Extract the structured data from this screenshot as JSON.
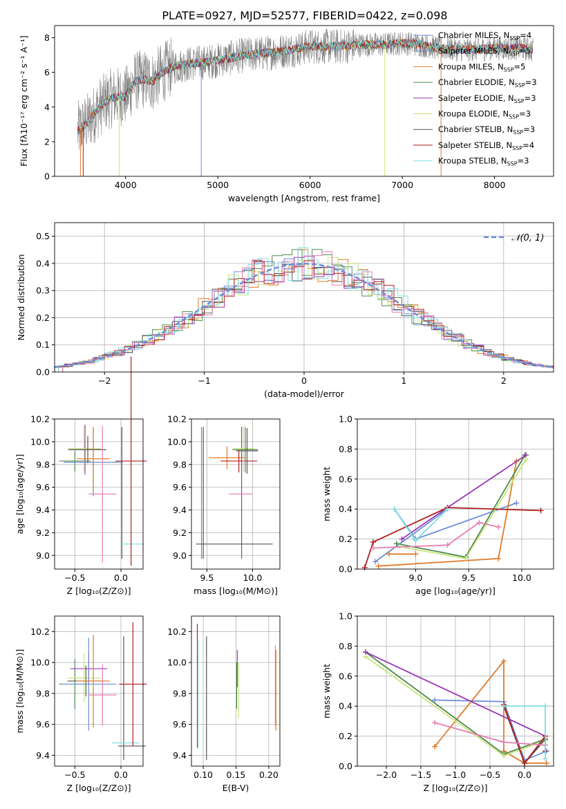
{
  "title": "PLATE=0927, MJD=52577, FIBERID=0422, z=0.098",
  "colors": {
    "chabrier_miles": "#6a8ed8",
    "salpeter_miles": "#6a8ed8",
    "kroupa_miles": "#e07a28",
    "chabrier_elodie": "#4f8a4f",
    "salpeter_elodie": "#9b35b5",
    "kroupa_elodie": "#c8e67a",
    "chabrier_stelib": "#555555",
    "salpeter_stelib": "#b01e1e",
    "kroupa_stelib": "#7fdede",
    "pink": "#e87fb0",
    "data_gray": "#808080",
    "normal": "#6a8ed8"
  },
  "chart_data": [
    {
      "id": "spectrum",
      "type": "line",
      "xlabel": "wavelength [Angstrom, rest frame]",
      "ylabel": "Flux [fλ10⁻¹⁷ erg cm⁻² s⁻¹ A⁻¹]",
      "xlim": [
        3230,
        8640
      ],
      "ylim": [
        0,
        8.7
      ],
      "xticks": [
        4000,
        5000,
        6000,
        7000,
        8000
      ],
      "yticks": [
        0,
        2,
        4,
        6,
        8
      ],
      "legend_loc": "upper right",
      "series": [
        {
          "name": "Chabrier MILES, N_SSP=4",
          "color": "#6a8ed8"
        },
        {
          "name": "Salpeter MILES, N_SSP=5",
          "color": "#6a8ed8"
        },
        {
          "name": "Kroupa MILES, N_SSP=5",
          "color": "#e07a28"
        },
        {
          "name": "Chabrier ELODIE, N_SSP=3",
          "color": "#4f8a4f"
        },
        {
          "name": "Salpeter ELODIE, N_SSP=3",
          "color": "#9b35b5"
        },
        {
          "name": "Kroupa ELODIE, N_SSP=3",
          "color": "#c8e67a"
        },
        {
          "name": "Chabrier STELIB, N_SSP=3",
          "color": "#555555"
        },
        {
          "name": "Salpeter STELIB, N_SSP=4",
          "color": "#b01e1e"
        },
        {
          "name": "Kroupa STELIB, N_SSP=3",
          "color": "#7fdede"
        }
      ],
      "continuum": [
        [
          3480,
          2.6
        ],
        [
          3600,
          3.2
        ],
        [
          3700,
          3.9
        ],
        [
          3800,
          4.4
        ],
        [
          3900,
          4.6
        ],
        [
          4000,
          4.6
        ],
        [
          4100,
          5.5
        ],
        [
          4200,
          5.6
        ],
        [
          4300,
          5.5
        ],
        [
          4400,
          6.0
        ],
        [
          4500,
          6.3
        ],
        [
          4700,
          6.5
        ],
        [
          4900,
          6.6
        ],
        [
          5100,
          6.8
        ],
        [
          5300,
          7.0
        ],
        [
          5500,
          7.1
        ],
        [
          5800,
          7.3
        ],
        [
          6000,
          7.5
        ],
        [
          6300,
          7.5
        ],
        [
          6600,
          7.6
        ],
        [
          6800,
          7.6
        ],
        [
          7000,
          7.7
        ],
        [
          7200,
          7.6
        ],
        [
          7400,
          7.4
        ],
        [
          7700,
          7.3
        ],
        [
          8000,
          7.4
        ],
        [
          8300,
          7.4
        ],
        [
          8400,
          7.3
        ]
      ]
    },
    {
      "id": "residual-hist",
      "type": "bar",
      "xlabel": "(data-model)/error",
      "ylabel": "Normed distribution",
      "xlim": [
        -2.5,
        2.5
      ],
      "ylim": [
        0,
        0.55
      ],
      "xticks": [
        -2,
        -1,
        0,
        1,
        2
      ],
      "yticks": [
        0.0,
        0.1,
        0.2,
        0.3,
        0.4,
        0.5
      ],
      "legend": "𝒩(0, 1)",
      "legend_loc": "upper right"
    },
    {
      "id": "z-age",
      "type": "scatter",
      "xlabel": "Z [log10(Z/Z⊙)]",
      "ylabel": "age  [log10(age/yr)]",
      "xlim": [
        -0.72,
        0.24
      ],
      "ylim": [
        8.88,
        10.2
      ],
      "xticks": [
        -0.5,
        0.0
      ],
      "yticks": [
        9.0,
        9.2,
        9.4,
        9.6,
        9.8,
        10.0,
        10.2
      ],
      "points": [
        {
          "x": -0.5,
          "xerr": 0.17,
          "y": 9.83,
          "yerr": 0.09,
          "color": "#4f8a4f"
        },
        {
          "x": -0.39,
          "xerr": 0.18,
          "y": 9.93,
          "yerr": 0.22,
          "color": "#9b35b5"
        },
        {
          "x": -0.4,
          "xerr": 0.18,
          "y": 9.94,
          "yerr": 0.2,
          "color": "#c8e67a"
        },
        {
          "x": -0.36,
          "xerr": 0.2,
          "y": 9.93,
          "yerr": 0.12,
          "color": "#555555"
        },
        {
          "x": -0.3,
          "xerr": 0.32,
          "y": 9.82,
          "yerr": 0.3,
          "color": "#6a8ed8"
        },
        {
          "x": -0.3,
          "xerr": 0.18,
          "y": 9.85,
          "yerr": 0.28,
          "color": "#e07a28"
        },
        {
          "x": -0.2,
          "xerr": 0.15,
          "y": 9.54,
          "yerr": 0.6,
          "color": "#e87fb0"
        },
        {
          "x": 0.01,
          "xerr": 0.0,
          "y": 9.55,
          "yerr": 0.58,
          "color": "#555555"
        },
        {
          "x": 0.12,
          "xerr": 0.13,
          "y": 9.1,
          "yerr": 0.0,
          "color": "#7fdede"
        },
        {
          "x": 0.11,
          "xerr": 0.17,
          "y": 9.83,
          "yerr": 0.92,
          "color": "#b01e1e"
        }
      ]
    },
    {
      "id": "mass-age",
      "type": "scatter",
      "xlabel": "mass [log10(M/M⊙)]",
      "ylabel": "",
      "xlim": [
        9.33,
        10.3
      ],
      "ylim": [
        8.88,
        10.2
      ],
      "xticks": [
        9.5,
        10.0
      ],
      "yticks": [
        9.0,
        9.2,
        9.4,
        9.6,
        9.8,
        10.0,
        10.2
      ],
      "points": [
        {
          "x": 9.44,
          "xerr": 0.0,
          "y": 9.55,
          "yerr": 0.58,
          "color": "#6a8ed8"
        },
        {
          "x": 9.46,
          "xerr": 0.0,
          "y": 9.55,
          "yerr": 0.58,
          "color": "#555555"
        },
        {
          "x": 9.8,
          "xerr": 0.42,
          "y": 9.1,
          "yerr": 0.0,
          "color": "#555555"
        },
        {
          "x": 9.72,
          "xerr": 0.2,
          "y": 9.86,
          "yerr": 0.1,
          "color": "#e07a28"
        },
        {
          "x": 9.85,
          "xerr": 0.2,
          "y": 9.83,
          "yerr": 0.1,
          "color": "#b01e1e"
        },
        {
          "x": 9.88,
          "xerr": 0.0,
          "y": 9.55,
          "yerr": 0.58,
          "color": "#9b35b5"
        },
        {
          "x": 9.9,
          "xerr": 0.12,
          "y": 9.94,
          "yerr": 0.2,
          "color": "#c8e67a"
        },
        {
          "x": 9.92,
          "xerr": 0.14,
          "y": 9.93,
          "yerr": 0.2,
          "color": "#4f8a4f"
        },
        {
          "x": 9.94,
          "xerr": 0.12,
          "y": 9.92,
          "yerr": 0.2,
          "color": "#555555"
        },
        {
          "x": 9.87,
          "xerr": 0.13,
          "y": 9.54,
          "yerr": 0.0,
          "color": "#e87fb0"
        }
      ]
    },
    {
      "id": "age-weight",
      "type": "line",
      "xlabel": "age  [log10(age/yr)]",
      "ylabel": "mass weight",
      "xlim": [
        8.45,
        10.3
      ],
      "ylim": [
        0,
        1.0
      ],
      "xticks": [
        9.0,
        9.5,
        10.0
      ],
      "yticks": [
        0.0,
        0.2,
        0.4,
        0.6,
        0.8,
        1.0
      ],
      "series": [
        {
          "color": "#6a8ed8",
          "points": [
            [
              8.8,
              0.4
            ],
            [
              9.0,
              0.2
            ],
            [
              9.95,
              0.44
            ]
          ]
        },
        {
          "color": "#6a8ed8",
          "points": [
            [
              8.62,
              0.05
            ],
            [
              9.3,
              0.4
            ]
          ]
        },
        {
          "color": "#e07a28",
          "points": [
            [
              8.65,
              0.02
            ],
            [
              9.78,
              0.07
            ],
            [
              9.95,
              0.72
            ]
          ]
        },
        {
          "color": "#4f8a4f",
          "points": [
            [
              8.82,
              0.17
            ],
            [
              9.47,
              0.08
            ],
            [
              10.03,
              0.76
            ]
          ]
        },
        {
          "color": "#9b35b5",
          "points": [
            [
              8.87,
              0.2
            ],
            [
              9.3,
              0.41
            ],
            [
              10.04,
              0.76
            ]
          ]
        },
        {
          "color": "#c8e67a",
          "points": [
            [
              8.85,
              0.15
            ],
            [
              9.47,
              0.07
            ],
            [
              10.04,
              0.73
            ]
          ]
        },
        {
          "color": "#b01e1e",
          "points": [
            [
              8.52,
              0.01
            ],
            [
              8.6,
              0.18
            ],
            [
              9.3,
              0.41
            ],
            [
              10.18,
              0.39
            ]
          ]
        },
        {
          "color": "#e87fb0",
          "points": [
            [
              8.6,
              0.14
            ],
            [
              9.3,
              0.16
            ],
            [
              9.6,
              0.31
            ],
            [
              9.78,
              0.28
            ]
          ]
        },
        {
          "color": "#7fdede",
          "points": [
            [
              8.8,
              0.4
            ],
            [
              9.0,
              0.19
            ],
            [
              9.3,
              0.4
            ]
          ]
        },
        {
          "color": "#e07a28",
          "points": [
            [
              8.75,
              0.1
            ],
            [
              9.0,
              0.1
            ]
          ]
        }
      ]
    },
    {
      "id": "z-mass",
      "type": "scatter",
      "xlabel": "Z [log10(Z/Z⊙)]",
      "ylabel": "mass [log10(M/M⊙)]",
      "xlim": [
        -0.72,
        0.24
      ],
      "ylim": [
        9.33,
        10.3
      ],
      "xticks": [
        -0.5,
        0.0
      ],
      "yticks": [
        9.4,
        9.6,
        9.8,
        10.0,
        10.2
      ],
      "points": [
        {
          "x": -0.5,
          "xerr": 0.17,
          "y": 9.86,
          "yerr": 0.16,
          "color": "#4f8a4f"
        },
        {
          "x": -0.35,
          "xerr": 0.2,
          "y": 9.96,
          "yerr": 0.1,
          "color": "#9b35b5"
        },
        {
          "x": -0.4,
          "xerr": 0.18,
          "y": 9.9,
          "yerr": 0.16,
          "color": "#c8e67a"
        },
        {
          "x": -0.38,
          "xerr": 0.2,
          "y": 9.88,
          "yerr": 0.1,
          "color": "#555555"
        },
        {
          "x": -0.35,
          "xerr": 0.3,
          "y": 9.86,
          "yerr": 0.3,
          "color": "#6a8ed8"
        },
        {
          "x": -0.3,
          "xerr": 0.18,
          "y": 9.88,
          "yerr": 0.3,
          "color": "#e07a28"
        },
        {
          "x": -0.2,
          "xerr": 0.15,
          "y": 9.79,
          "yerr": 0.2,
          "color": "#e87fb0"
        },
        {
          "x": 0.03,
          "xerr": 0.0,
          "y": 9.77,
          "yerr": 0.4,
          "color": "#555555"
        },
        {
          "x": 0.05,
          "xerr": 0.15,
          "y": 9.48,
          "yerr": 0.0,
          "color": "#7fdede"
        },
        {
          "x": 0.12,
          "xerr": 0.15,
          "y": 9.46,
          "yerr": 0.0,
          "color": "#555555"
        },
        {
          "x": 0.13,
          "xerr": 0.15,
          "y": 9.86,
          "yerr": 0.4,
          "color": "#b01e1e"
        }
      ]
    },
    {
      "id": "ebv-mass",
      "type": "scatter",
      "xlabel": "E(B-V)",
      "ylabel": "",
      "xlim": [
        0.082,
        0.217
      ],
      "ylim": [
        9.33,
        10.3
      ],
      "xticks": [
        0.1,
        0.15,
        0.2
      ],
      "yticks": [
        9.4,
        9.6,
        9.8,
        10.0,
        10.2
      ],
      "points": [
        {
          "x": 0.091,
          "y": 9.85,
          "yerr": 0.4,
          "color": "#b01e1e"
        },
        {
          "x": 0.092,
          "y": 9.79,
          "yerr": 0.35,
          "color": "#7fdede"
        },
        {
          "x": 0.105,
          "y": 9.77,
          "yerr": 0.4,
          "color": "#555555"
        },
        {
          "x": 0.152,
          "y": 9.96,
          "yerr": 0.12,
          "color": "#9b35b5"
        },
        {
          "x": 0.151,
          "y": 9.85,
          "yerr": 0.15,
          "color": "#4f8a4f"
        },
        {
          "x": 0.154,
          "y": 9.82,
          "yerr": 0.18,
          "color": "#c8e67a"
        },
        {
          "x": 0.21,
          "y": 9.85,
          "yerr": 0.26,
          "color": "#e87fb0"
        },
        {
          "x": 0.211,
          "y": 9.82,
          "yerr": 0.26,
          "color": "#e07a28"
        }
      ]
    },
    {
      "id": "z-weight",
      "type": "line",
      "xlabel": "Z [log10(Z/Z⊙)]",
      "ylabel": "mass weight",
      "xlim": [
        -2.42,
        0.42
      ],
      "ylim": [
        0,
        1.0
      ],
      "xticks": [
        -2.0,
        -1.5,
        -1.0,
        -0.5,
        0.0
      ],
      "yticks": [
        0.0,
        0.2,
        0.4,
        0.6,
        0.8,
        1.0
      ],
      "series": [
        {
          "color": "#6a8ed8",
          "points": [
            [
              -1.3,
              0.44
            ],
            [
              -0.3,
              0.43
            ],
            [
              0.0,
              0.04
            ],
            [
              0.32,
              0.1
            ]
          ]
        },
        {
          "color": "#e07a28",
          "points": [
            [
              -1.3,
              0.13
            ],
            [
              -0.3,
              0.7
            ],
            [
              -0.3,
              0.1
            ],
            [
              0.0,
              0.02
            ],
            [
              0.32,
              0.02
            ]
          ]
        },
        {
          "color": "#4f8a4f",
          "points": [
            [
              -2.3,
              0.76
            ],
            [
              -0.3,
              0.08
            ],
            [
              0.3,
              0.18
            ]
          ]
        },
        {
          "color": "#9b35b5",
          "points": [
            [
              -2.3,
              0.76
            ],
            [
              0.3,
              0.2
            ],
            [
              0.3,
              0.14
            ]
          ]
        },
        {
          "color": "#c8e67a",
          "points": [
            [
              -2.3,
              0.73
            ],
            [
              -0.3,
              0.07
            ],
            [
              0.3,
              0.17
            ]
          ]
        },
        {
          "color": "#555555",
          "points": [
            [
              -0.3,
              0.4
            ],
            [
              0.0,
              0.02
            ],
            [
              0.3,
              0.18
            ]
          ]
        },
        {
          "color": "#b01e1e",
          "points": [
            [
              -0.3,
              0.41
            ],
            [
              0.0,
              0.02
            ],
            [
              0.3,
              0.2
            ],
            [
              0.3,
              0.1
            ]
          ]
        },
        {
          "color": "#e87fb0",
          "points": [
            [
              -1.3,
              0.29
            ],
            [
              -0.3,
              0.16
            ],
            [
              0.3,
              0.14
            ]
          ]
        },
        {
          "color": "#7fdede",
          "points": [
            [
              -0.3,
              0.4
            ],
            [
              0.3,
              0.4
            ],
            [
              0.3,
              0.05
            ]
          ]
        }
      ]
    }
  ]
}
